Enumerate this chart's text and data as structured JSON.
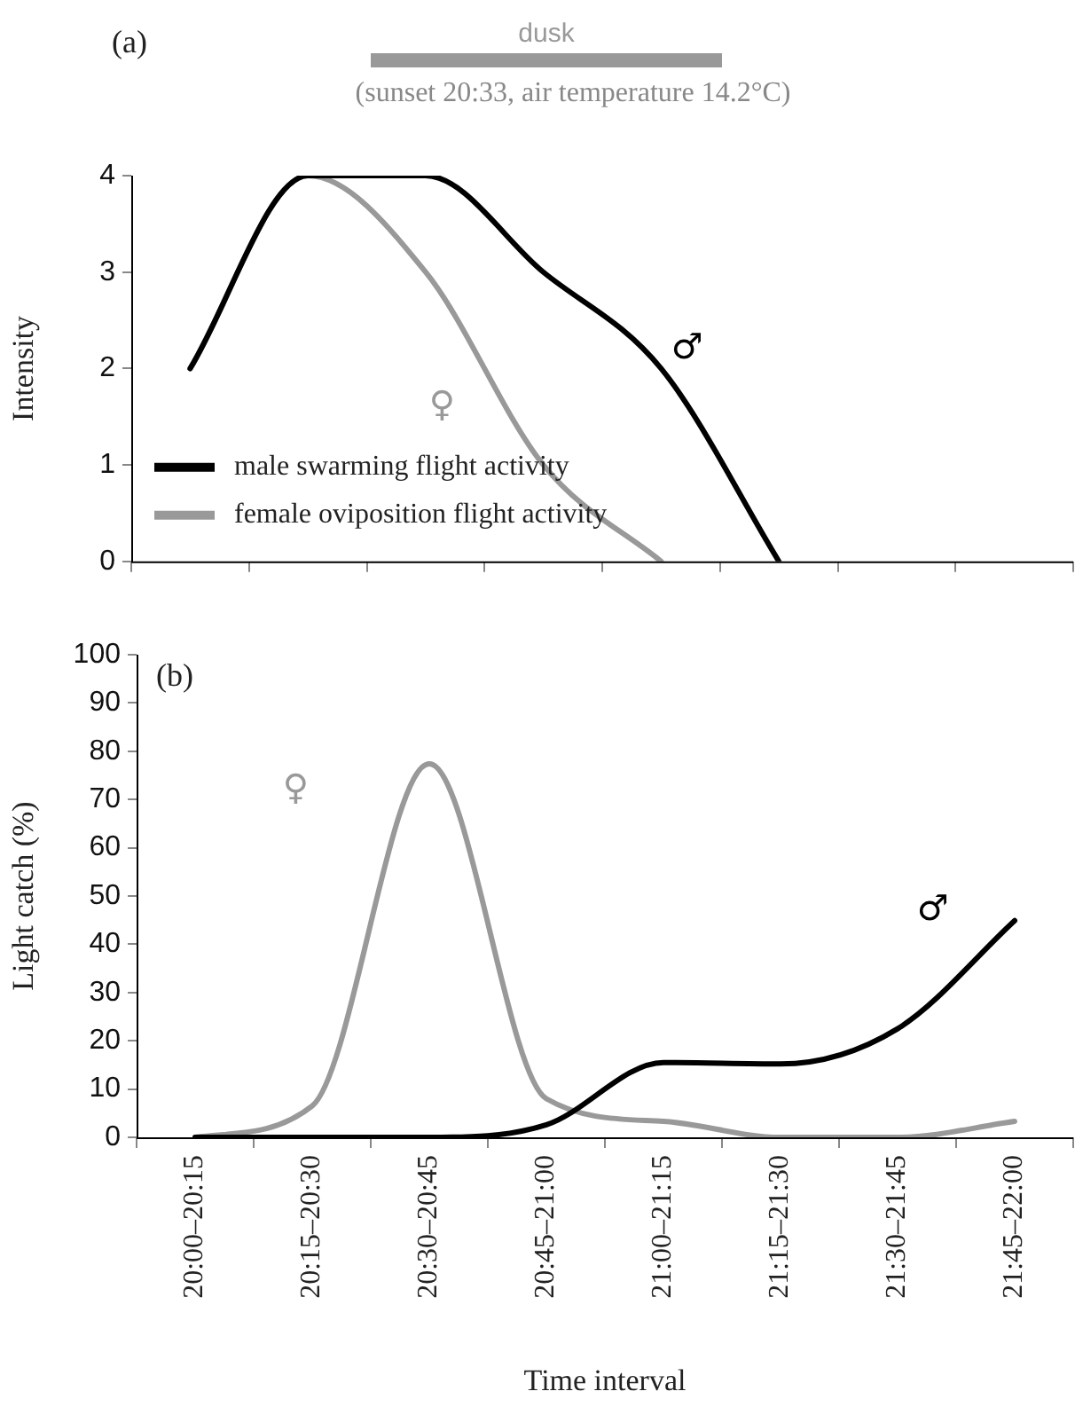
{
  "chart_data": [
    {
      "type": "line",
      "title": "(a)",
      "subtitle": "(sunset 20:33, air temperature 14.2°C)",
      "ylabel": "Intensity",
      "legend": "bottom left",
      "tick_labels": "y",
      "grid": false,
      "marker": "none",
      "line_style": "solid",
      "categories": [
        null,
        null,
        null,
        null,
        null,
        null,
        null,
        null
      ],
      "ylim": [
        0,
        4
      ],
      "yticks": [
        0,
        1,
        2,
        3,
        4
      ],
      "annotations": [
        "dusk",
        "♂",
        "♀"
      ],
      "series": [
        {
          "name": "male swarming flight activity",
          "color": "#000000",
          "values": [
            2,
            4,
            4,
            3,
            2,
            0,
            null,
            null
          ]
        },
        {
          "name": "female oviposition flight activity",
          "color": "#999999",
          "values": [
            2,
            4,
            3,
            1,
            0,
            null,
            null,
            null
          ]
        }
      ]
    },
    {
      "type": "line",
      "title": "(b)",
      "xlabel": "Time interval",
      "ylabel": "Light catch (%)",
      "legend": false,
      "grid": false,
      "marker": "none",
      "line_style": "solid",
      "categories": [
        "20:00–20:15",
        "20:15–20:30",
        "20:30–20:45",
        "20:45–21:00",
        "21:00–21:15",
        "21:15–21:30",
        "21:30–21:45",
        "21:45–22:00"
      ],
      "ylim": [
        0,
        100
      ],
      "yticks": [
        0,
        10,
        20,
        30,
        40,
        50,
        60,
        70,
        80,
        90,
        100
      ],
      "annotations": [
        "♂",
        "♀"
      ],
      "series": [
        {
          "color": "#000000",
          "values": [
            0,
            0,
            0,
            2.6,
            15.5,
            15.2,
            22.5,
            44.9
          ]
        },
        {
          "color": "#999999",
          "values": [
            0,
            6.5,
            77.4,
            8,
            3.3,
            0,
            0,
            3.3
          ]
        }
      ]
    }
  ]
}
